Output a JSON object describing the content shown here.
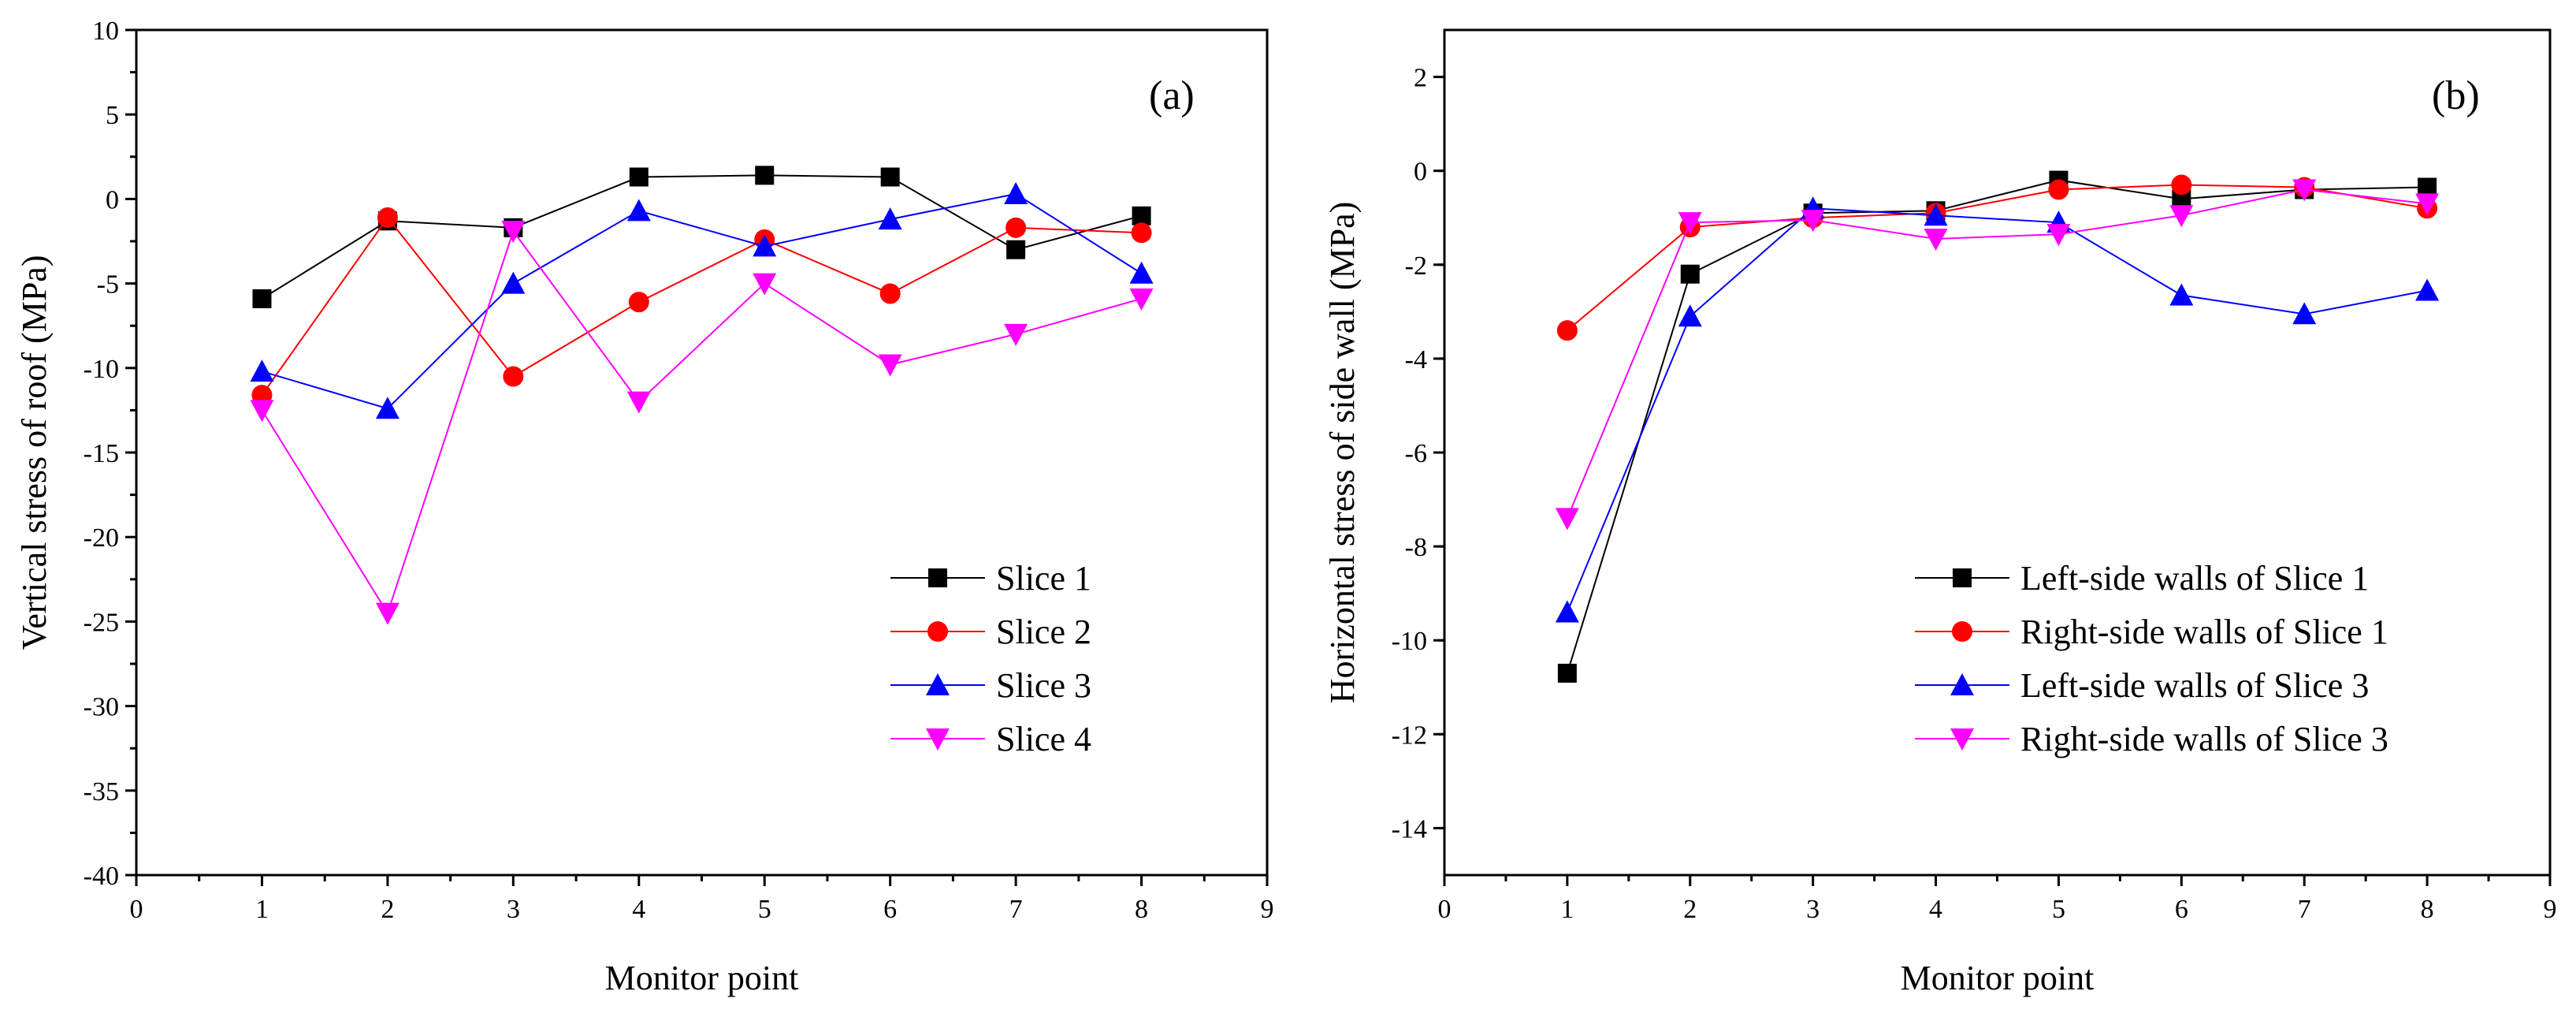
{
  "chart_data": [
    {
      "type": "line",
      "panel_label": "(a)",
      "title": "",
      "xlabel": "Monitor point",
      "ylabel": "Vertical stress of roof (MPa)",
      "xlim": [
        0,
        9
      ],
      "ylim": [
        -40,
        10
      ],
      "xticks": [
        0,
        1,
        2,
        3,
        4,
        5,
        6,
        7,
        8,
        9
      ],
      "yticks": [
        -40,
        -35,
        -30,
        -25,
        -20,
        -15,
        -10,
        -5,
        0,
        5,
        10
      ],
      "legend_position": "lower-right",
      "x": [
        1,
        2,
        3,
        4,
        5,
        6,
        7,
        8
      ],
      "series": [
        {
          "name": "Slice 1",
          "color": "#000000",
          "marker": "square",
          "values": [
            -5.9,
            -1.3,
            -1.7,
            1.3,
            1.4,
            1.3,
            -3.0,
            -1.0
          ]
        },
        {
          "name": "Slice 2",
          "color": "#ff0000",
          "marker": "circle",
          "values": [
            -11.6,
            -1.1,
            -10.5,
            -6.1,
            -2.4,
            -5.6,
            -1.7,
            -2.0
          ]
        },
        {
          "name": "Slice 3",
          "color": "#0000ff",
          "marker": "triangle-up",
          "values": [
            -10.2,
            -12.4,
            -5.0,
            -0.7,
            -2.8,
            -1.2,
            0.3,
            -4.4
          ]
        },
        {
          "name": "Slice 4",
          "color": "#ff00ff",
          "marker": "triangle-down",
          "values": [
            -12.5,
            -24.5,
            -1.9,
            -12.0,
            -5.0,
            -9.8,
            -8.0,
            -5.9
          ]
        }
      ]
    },
    {
      "type": "line",
      "panel_label": "(b)",
      "title": "",
      "xlabel": "Monitor point",
      "ylabel": "Horizontal stress of side wall (MPa)",
      "xlim": [
        0,
        9
      ],
      "ylim": [
        -15,
        3
      ],
      "xticks": [
        0,
        1,
        2,
        3,
        4,
        5,
        6,
        7,
        8,
        9
      ],
      "yticks": [
        -14,
        -12,
        -10,
        -8,
        -6,
        -4,
        -2,
        0,
        2
      ],
      "legend_position": "lower-right",
      "x": [
        1,
        2,
        3,
        4,
        5,
        6,
        7,
        8
      ],
      "series": [
        {
          "name": "Left-side walls of Slice 1",
          "color": "#000000",
          "marker": "square",
          "values": [
            -10.7,
            -2.2,
            -0.9,
            -0.85,
            -0.2,
            -0.6,
            -0.4,
            -0.35
          ]
        },
        {
          "name": "Right-side walls of Slice 1",
          "color": "#ff0000",
          "marker": "circle",
          "values": [
            -3.4,
            -1.2,
            -1.0,
            -0.9,
            -0.4,
            -0.3,
            -0.35,
            -0.8
          ]
        },
        {
          "name": "Left-side walls of Slice 3",
          "color": "#0000ff",
          "marker": "triangle-up",
          "values": [
            -9.4,
            -3.1,
            -0.8,
            -0.95,
            -1.1,
            -2.65,
            -3.05,
            -2.55
          ]
        },
        {
          "name": "Right-side walls of Slice 3",
          "color": "#ff00ff",
          "marker": "triangle-down",
          "values": [
            -7.4,
            -1.1,
            -1.05,
            -1.45,
            -1.35,
            -0.95,
            -0.4,
            -0.7
          ]
        }
      ]
    }
  ]
}
